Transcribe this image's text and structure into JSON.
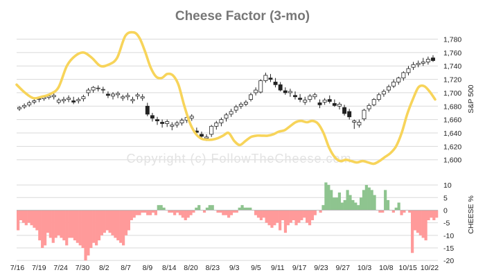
{
  "chart_data": {
    "type": "line",
    "title": "Cheese Factor (3-mo)",
    "watermark": "Copyright (c) FollowTheCheese.com",
    "colors": {
      "cheese_line": "#f7d45a",
      "candles": "#222222",
      "bar_positive": "#8ec48f",
      "bar_negative": "#ff9a9a",
      "grid": "#d9d9d9"
    },
    "x_tick_labels": [
      "7/16",
      "7/19",
      "7/24",
      "7/30",
      "8/2",
      "8/7",
      "8/9",
      "8/14",
      "8/20",
      "8/23",
      "9/3",
      "9/5",
      "9/11",
      "9/17",
      "9/23",
      "9/27",
      "10/3",
      "10/8",
      "10/15",
      "10/22"
    ],
    "upper_panel": {
      "ylabel": "S&P 500",
      "ylim": [
        1578,
        1795
      ],
      "y_ticks": [
        1600,
        1620,
        1640,
        1660,
        1680,
        1700,
        1720,
        1740,
        1760,
        1780
      ],
      "y_tick_labels": [
        "1,600",
        "1,620",
        "1,640",
        "1,660",
        "1,680",
        "1,700",
        "1,720",
        "1,740",
        "1,760",
        "1,780"
      ],
      "series": [
        {
          "type": "candlestick",
          "ohlc": [
            [
              1676,
              1680,
              1673,
              1678
            ],
            [
              1679,
              1684,
              1676,
              1681
            ],
            [
              1682,
              1688,
              1679,
              1685
            ],
            [
              1686,
              1691,
              1683,
              1688
            ],
            [
              1690,
              1694,
              1686,
              1691
            ],
            [
              1691,
              1696,
              1688,
              1693
            ],
            [
              1693,
              1698,
              1690,
              1695
            ],
            [
              1694,
              1699,
              1690,
              1696
            ],
            [
              1686,
              1692,
              1683,
              1689
            ],
            [
              1688,
              1694,
              1684,
              1690
            ],
            [
              1690,
              1696,
              1686,
              1692
            ],
            [
              1688,
              1694,
              1683,
              1686
            ],
            [
              1688,
              1693,
              1684,
              1690
            ],
            [
              1691,
              1697,
              1687,
              1694
            ],
            [
              1700,
              1707,
              1695,
              1704
            ],
            [
              1704,
              1710,
              1700,
              1708
            ],
            [
              1706,
              1711,
              1702,
              1707
            ],
            [
              1704,
              1709,
              1699,
              1705
            ],
            [
              1698,
              1702,
              1692,
              1696
            ],
            [
              1695,
              1701,
              1690,
              1698
            ],
            [
              1697,
              1702,
              1692,
              1699
            ],
            [
              1692,
              1697,
              1688,
              1694
            ],
            [
              1694,
              1700,
              1689,
              1696
            ],
            [
              1688,
              1694,
              1684,
              1690
            ],
            [
              1695,
              1700,
              1690,
              1697
            ],
            [
              1692,
              1698,
              1688,
              1694
            ],
            [
              1680,
              1685,
              1665,
              1668
            ],
            [
              1666,
              1670,
              1657,
              1662
            ],
            [
              1660,
              1664,
              1652,
              1658
            ],
            [
              1656,
              1660,
              1648,
              1654
            ],
            [
              1654,
              1660,
              1649,
              1657
            ],
            [
              1650,
              1656,
              1644,
              1652
            ],
            [
              1652,
              1658,
              1648,
              1655
            ],
            [
              1655,
              1662,
              1651,
              1659
            ],
            [
              1659,
              1666,
              1655,
              1663
            ],
            [
              1662,
              1668,
              1658,
              1665
            ],
            [
              1643,
              1648,
              1636,
              1641
            ],
            [
              1638,
              1642,
              1631,
              1635
            ],
            [
              1632,
              1638,
              1628,
              1634
            ],
            [
              1638,
              1652,
              1634,
              1650
            ],
            [
              1650,
              1658,
              1645,
              1655
            ],
            [
              1655,
              1663,
              1650,
              1660
            ],
            [
              1662,
              1670,
              1657,
              1667
            ],
            [
              1668,
              1676,
              1664,
              1672
            ],
            [
              1674,
              1682,
              1670,
              1679
            ],
            [
              1680,
              1686,
              1676,
              1683
            ],
            [
              1683,
              1689,
              1680,
              1686
            ],
            [
              1690,
              1700,
              1687,
              1697
            ],
            [
              1700,
              1708,
              1696,
              1704
            ],
            [
              1701,
              1720,
              1699,
              1718
            ],
            [
              1718,
              1730,
              1715,
              1726
            ],
            [
              1722,
              1728,
              1716,
              1720
            ],
            [
              1716,
              1722,
              1708,
              1712
            ],
            [
              1712,
              1716,
              1702,
              1704
            ],
            [
              1703,
              1708,
              1697,
              1700
            ],
            [
              1700,
              1706,
              1694,
              1702
            ],
            [
              1696,
              1702,
              1690,
              1694
            ],
            [
              1692,
              1698,
              1686,
              1690
            ],
            [
              1686,
              1694,
              1682,
              1689
            ],
            [
              1690,
              1698,
              1686,
              1695
            ],
            [
              1694,
              1700,
              1690,
              1697
            ],
            [
              1685,
              1690,
              1677,
              1682
            ],
            [
              1686,
              1692,
              1682,
              1689
            ],
            [
              1690,
              1696,
              1684,
              1687
            ],
            [
              1684,
              1690,
              1679,
              1681
            ],
            [
              1680,
              1686,
              1675,
              1683
            ],
            [
              1678,
              1682,
              1666,
              1669
            ],
            [
              1672,
              1676,
              1660,
              1664
            ],
            [
              1656,
              1660,
              1646,
              1658
            ],
            [
              1652,
              1660,
              1648,
              1656
            ],
            [
              1661,
              1676,
              1658,
              1674
            ],
            [
              1676,
              1684,
              1672,
              1681
            ],
            [
              1682,
              1692,
              1680,
              1690
            ],
            [
              1690,
              1700,
              1687,
              1697
            ],
            [
              1698,
              1705,
              1694,
              1702
            ],
            [
              1704,
              1712,
              1700,
              1709
            ],
            [
              1710,
              1720,
              1707,
              1716
            ],
            [
              1716,
              1724,
              1712,
              1722
            ],
            [
              1722,
              1732,
              1718,
              1730
            ],
            [
              1730,
              1740,
              1726,
              1736
            ],
            [
              1738,
              1746,
              1734,
              1742
            ],
            [
              1742,
              1748,
              1738,
              1744
            ],
            [
              1744,
              1752,
              1740,
              1746
            ],
            [
              1746,
              1754,
              1742,
              1750
            ],
            [
              1752,
              1756,
              1746,
              1748
            ]
          ]
        },
        {
          "type": "line",
          "points": [
            [
              0,
              1712
            ],
            [
              3,
              1700
            ],
            [
              6,
              1692
            ],
            [
              9,
              1694
            ],
            [
              12,
              1698
            ],
            [
              15,
              1708
            ],
            [
              18,
              1740
            ],
            [
              21,
              1755
            ],
            [
              24,
              1760
            ],
            [
              27,
              1752
            ],
            [
              30,
              1740
            ],
            [
              33,
              1742
            ],
            [
              36,
              1752
            ],
            [
              39,
              1785
            ],
            [
              42,
              1790
            ],
            [
              44,
              1782
            ],
            [
              46,
              1762
            ],
            [
              48,
              1738
            ],
            [
              50,
              1724
            ],
            [
              52,
              1722
            ],
            [
              54,
              1728
            ],
            [
              56,
              1726
            ],
            [
              58,
              1712
            ],
            [
              60,
              1682
            ],
            [
              62,
              1656
            ],
            [
              64,
              1640
            ],
            [
              66,
              1632
            ],
            [
              68,
              1630
            ],
            [
              70,
              1630
            ],
            [
              72,
              1632
            ],
            [
              74,
              1636
            ],
            [
              76,
              1640
            ],
            [
              78,
              1628
            ],
            [
              80,
              1622
            ],
            [
              82,
              1628
            ],
            [
              84,
              1634
            ],
            [
              86,
              1636
            ],
            [
              88,
              1636
            ],
            [
              90,
              1636
            ],
            [
              92,
              1638
            ],
            [
              94,
              1642
            ],
            [
              96,
              1644
            ],
            [
              98,
              1650
            ],
            [
              100,
              1656
            ],
            [
              102,
              1658
            ],
            [
              104,
              1656
            ],
            [
              106,
              1658
            ],
            [
              108,
              1654
            ],
            [
              110,
              1640
            ],
            [
              112,
              1618
            ],
            [
              114,
              1604
            ],
            [
              116,
              1598
            ],
            [
              118,
              1600
            ],
            [
              120,
              1598
            ],
            [
              122,
              1596
            ],
            [
              124,
              1598
            ],
            [
              126,
              1596
            ],
            [
              128,
              1594
            ],
            [
              130,
              1598
            ],
            [
              132,
              1604
            ],
            [
              134,
              1610
            ],
            [
              136,
              1620
            ],
            [
              138,
              1640
            ],
            [
              140,
              1668
            ],
            [
              142,
              1690
            ],
            [
              144,
              1708
            ],
            [
              146,
              1710
            ],
            [
              148,
              1702
            ],
            [
              150,
              1690
            ]
          ]
        }
      ]
    },
    "lower_panel": {
      "ylabel": "CHEESE %",
      "ylim": [
        -20.5,
        12.5
      ],
      "y_ticks": [
        10,
        5,
        0,
        -5,
        -10,
        -15,
        -20
      ],
      "y_tick_labels": [
        "10",
        "5",
        "0",
        "-5",
        "-10",
        "-15",
        "-20"
      ],
      "bars": [
        -8,
        -4,
        -5,
        -6,
        -5,
        -6,
        -7,
        -8,
        -12,
        -15,
        -14,
        -9,
        -11,
        -13,
        -11,
        -10,
        -11,
        -12,
        -14,
        -11,
        -11,
        -12,
        -13,
        -14,
        -15,
        -20,
        -18,
        -15,
        -13,
        -14,
        -12,
        -10,
        -9,
        -8,
        -9,
        -10,
        -11,
        -12,
        -13,
        -14,
        -10,
        -8,
        -4,
        -3,
        -2,
        -2,
        -1,
        -1,
        -2,
        -2,
        -1,
        -2,
        2,
        2,
        1,
        0,
        -1,
        -1,
        -2,
        -1,
        -2,
        -3,
        -4,
        -3,
        -2,
        -1,
        1,
        2,
        0,
        -1,
        1,
        2,
        2,
        0,
        -1,
        -1,
        -2,
        -2,
        -3,
        -2,
        -1,
        -1,
        1,
        2,
        1,
        1,
        1,
        0,
        -2,
        -3,
        -4,
        -3,
        -5,
        -6,
        -7,
        -6,
        -5,
        -8,
        -4,
        -9,
        -6,
        -5,
        -4,
        -6,
        -5,
        -4,
        -3,
        -5,
        -6,
        -4,
        -2,
        0,
        -1,
        2,
        11,
        10,
        8,
        5,
        5,
        7,
        3,
        4,
        8,
        6,
        4,
        3,
        2,
        5,
        8,
        10,
        9,
        8,
        6,
        0,
        -1,
        -1,
        8,
        4,
        0,
        -1,
        1,
        3,
        -2,
        -1,
        0,
        -1,
        -17,
        -8,
        -9,
        -10,
        -11,
        -12,
        -4,
        -3,
        -4,
        -3
      ]
    }
  }
}
